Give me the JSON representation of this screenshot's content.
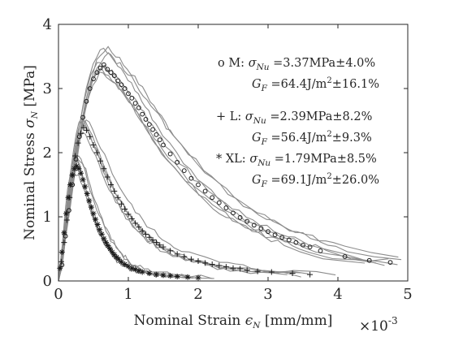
{
  "chart_data": {
    "type": "scatter",
    "xlabel_text": "Nominal Strain ",
    "xlabel_symbol": "ϵ",
    "xlabel_sub": "N",
    "xlabel_unit": " [mm/mm]",
    "x_multiplier": "×10",
    "x_multiplier_exp": "-3",
    "ylabel_text": "Nominal Stress ",
    "ylabel_symbol": "σ",
    "ylabel_sub": "N",
    "ylabel_unit": " [MPa]",
    "xlim": [
      0,
      5
    ],
    "ylim": [
      0,
      4
    ],
    "x_ticks": [
      "0",
      "1",
      "2",
      "3",
      "4",
      "5"
    ],
    "y_ticks": [
      "0",
      "1",
      "2",
      "3",
      "4"
    ],
    "grid": false,
    "background_curve_color": "#8c8c8c",
    "marker_color": "#1a1a1a",
    "series": [
      {
        "label": "M",
        "marker": "o",
        "annotation": {
          "prefix": "o M: ",
          "sigma_symbol": "σ",
          "sigma_sub": "Nu",
          "sigma_value": " =3.37MPa±4.0%",
          "gf_symbol": "G",
          "gf_sub": "F",
          "gf_value": " =64.4J/m",
          "gf_exp": "2",
          "gf_tail": "±16.1%"
        },
        "points": [
          [
            0.05,
            0.25
          ],
          [
            0.1,
            0.7
          ],
          [
            0.15,
            1.1
          ],
          [
            0.2,
            1.5
          ],
          [
            0.25,
            1.9
          ],
          [
            0.3,
            2.25
          ],
          [
            0.35,
            2.55
          ],
          [
            0.4,
            2.8
          ],
          [
            0.45,
            3.0
          ],
          [
            0.5,
            3.15
          ],
          [
            0.55,
            3.25
          ],
          [
            0.6,
            3.32
          ],
          [
            0.65,
            3.37
          ],
          [
            0.7,
            3.3
          ],
          [
            0.75,
            3.25
          ],
          [
            0.8,
            3.2
          ],
          [
            0.85,
            3.12
          ],
          [
            0.9,
            3.06
          ],
          [
            0.95,
            3.0
          ],
          [
            1.0,
            2.92
          ],
          [
            1.05,
            2.85
          ],
          [
            1.1,
            2.77
          ],
          [
            1.15,
            2.7
          ],
          [
            1.2,
            2.6
          ],
          [
            1.25,
            2.52
          ],
          [
            1.3,
            2.44
          ],
          [
            1.35,
            2.36
          ],
          [
            1.4,
            2.28
          ],
          [
            1.45,
            2.2
          ],
          [
            1.5,
            2.12
          ],
          [
            1.6,
            1.98
          ],
          [
            1.7,
            1.85
          ],
          [
            1.8,
            1.72
          ],
          [
            1.9,
            1.6
          ],
          [
            2.0,
            1.5
          ],
          [
            2.1,
            1.4
          ],
          [
            2.2,
            1.3
          ],
          [
            2.3,
            1.22
          ],
          [
            2.4,
            1.14
          ],
          [
            2.5,
            1.06
          ],
          [
            2.6,
            0.99
          ],
          [
            2.7,
            0.93
          ],
          [
            2.8,
            0.87
          ],
          [
            2.9,
            0.82
          ],
          [
            3.0,
            0.77
          ],
          [
            3.1,
            0.72
          ],
          [
            3.2,
            0.68
          ],
          [
            3.3,
            0.64
          ],
          [
            3.4,
            0.6
          ],
          [
            3.5,
            0.56
          ],
          [
            3.6,
            0.53
          ],
          [
            3.75,
            0.47
          ],
          [
            4.1,
            0.38
          ],
          [
            4.45,
            0.32
          ],
          [
            4.75,
            0.29
          ]
        ]
      },
      {
        "label": "L",
        "marker": "+",
        "annotation": {
          "prefix": "+ L: ",
          "sigma_symbol": "σ",
          "sigma_sub": "Nu",
          "sigma_value": " =2.39MPa±8.2%",
          "gf_symbol": "G",
          "gf_sub": "F",
          "gf_value": " =56.4J/m",
          "gf_exp": "2",
          "gf_tail": "±9.3%"
        },
        "points": [
          [
            0.04,
            0.3
          ],
          [
            0.08,
            0.6
          ],
          [
            0.12,
            0.95
          ],
          [
            0.16,
            1.3
          ],
          [
            0.2,
            1.65
          ],
          [
            0.24,
            1.95
          ],
          [
            0.28,
            2.15
          ],
          [
            0.32,
            2.3
          ],
          [
            0.36,
            2.39
          ],
          [
            0.4,
            2.35
          ],
          [
            0.45,
            2.25
          ],
          [
            0.5,
            2.12
          ],
          [
            0.55,
            2.0
          ],
          [
            0.6,
            1.87
          ],
          [
            0.65,
            1.75
          ],
          [
            0.7,
            1.62
          ],
          [
            0.75,
            1.5
          ],
          [
            0.8,
            1.4
          ],
          [
            0.85,
            1.3
          ],
          [
            0.9,
            1.2
          ],
          [
            0.95,
            1.12
          ],
          [
            1.0,
            1.04
          ],
          [
            1.05,
            0.97
          ],
          [
            1.1,
            0.9
          ],
          [
            1.15,
            0.84
          ],
          [
            1.2,
            0.78
          ],
          [
            1.25,
            0.73
          ],
          [
            1.3,
            0.68
          ],
          [
            1.35,
            0.64
          ],
          [
            1.4,
            0.6
          ],
          [
            1.45,
            0.56
          ],
          [
            1.5,
            0.53
          ],
          [
            1.6,
            0.47
          ],
          [
            1.7,
            0.42
          ],
          [
            1.8,
            0.38
          ],
          [
            1.9,
            0.34
          ],
          [
            2.0,
            0.31
          ],
          [
            2.1,
            0.28
          ],
          [
            2.2,
            0.26
          ],
          [
            2.3,
            0.24
          ],
          [
            2.4,
            0.22
          ],
          [
            2.5,
            0.2
          ],
          [
            2.6,
            0.19
          ],
          [
            2.7,
            0.17
          ],
          [
            2.85,
            0.15
          ],
          [
            3.05,
            0.14
          ],
          [
            3.35,
            0.12
          ],
          [
            3.6,
            0.1
          ]
        ]
      },
      {
        "label": "XL",
        "marker": "*",
        "annotation": {
          "prefix": "* XL: ",
          "sigma_symbol": "σ",
          "sigma_sub": "Nu",
          "sigma_value": " =1.79MPa±8.5%",
          "gf_symbol": "G",
          "gf_sub": "F",
          "gf_value": " =69.1J/m",
          "gf_exp": "2",
          "gf_tail": "±26.0%"
        },
        "points": [
          [
            0.02,
            0.2
          ],
          [
            0.05,
            0.45
          ],
          [
            0.08,
            0.75
          ],
          [
            0.11,
            1.05
          ],
          [
            0.14,
            1.3
          ],
          [
            0.17,
            1.5
          ],
          [
            0.2,
            1.65
          ],
          [
            0.23,
            1.75
          ],
          [
            0.26,
            1.79
          ],
          [
            0.29,
            1.75
          ],
          [
            0.32,
            1.68
          ],
          [
            0.35,
            1.58
          ],
          [
            0.38,
            1.47
          ],
          [
            0.41,
            1.36
          ],
          [
            0.44,
            1.25
          ],
          [
            0.47,
            1.15
          ],
          [
            0.5,
            1.05
          ],
          [
            0.53,
            0.96
          ],
          [
            0.56,
            0.88
          ],
          [
            0.59,
            0.8
          ],
          [
            0.62,
            0.73
          ],
          [
            0.65,
            0.66
          ],
          [
            0.68,
            0.6
          ],
          [
            0.71,
            0.55
          ],
          [
            0.74,
            0.5
          ],
          [
            0.77,
            0.45
          ],
          [
            0.8,
            0.41
          ],
          [
            0.83,
            0.37
          ],
          [
            0.86,
            0.34
          ],
          [
            0.9,
            0.3
          ],
          [
            0.95,
            0.26
          ],
          [
            1.0,
            0.23
          ],
          [
            1.05,
            0.2
          ],
          [
            1.1,
            0.18
          ],
          [
            1.15,
            0.16
          ],
          [
            1.2,
            0.14
          ],
          [
            1.3,
            0.12
          ],
          [
            1.4,
            0.1
          ],
          [
            1.5,
            0.09
          ],
          [
            1.6,
            0.08
          ],
          [
            1.7,
            0.07
          ],
          [
            1.85,
            0.06
          ],
          [
            2.0,
            0.05
          ]
        ]
      }
    ]
  }
}
